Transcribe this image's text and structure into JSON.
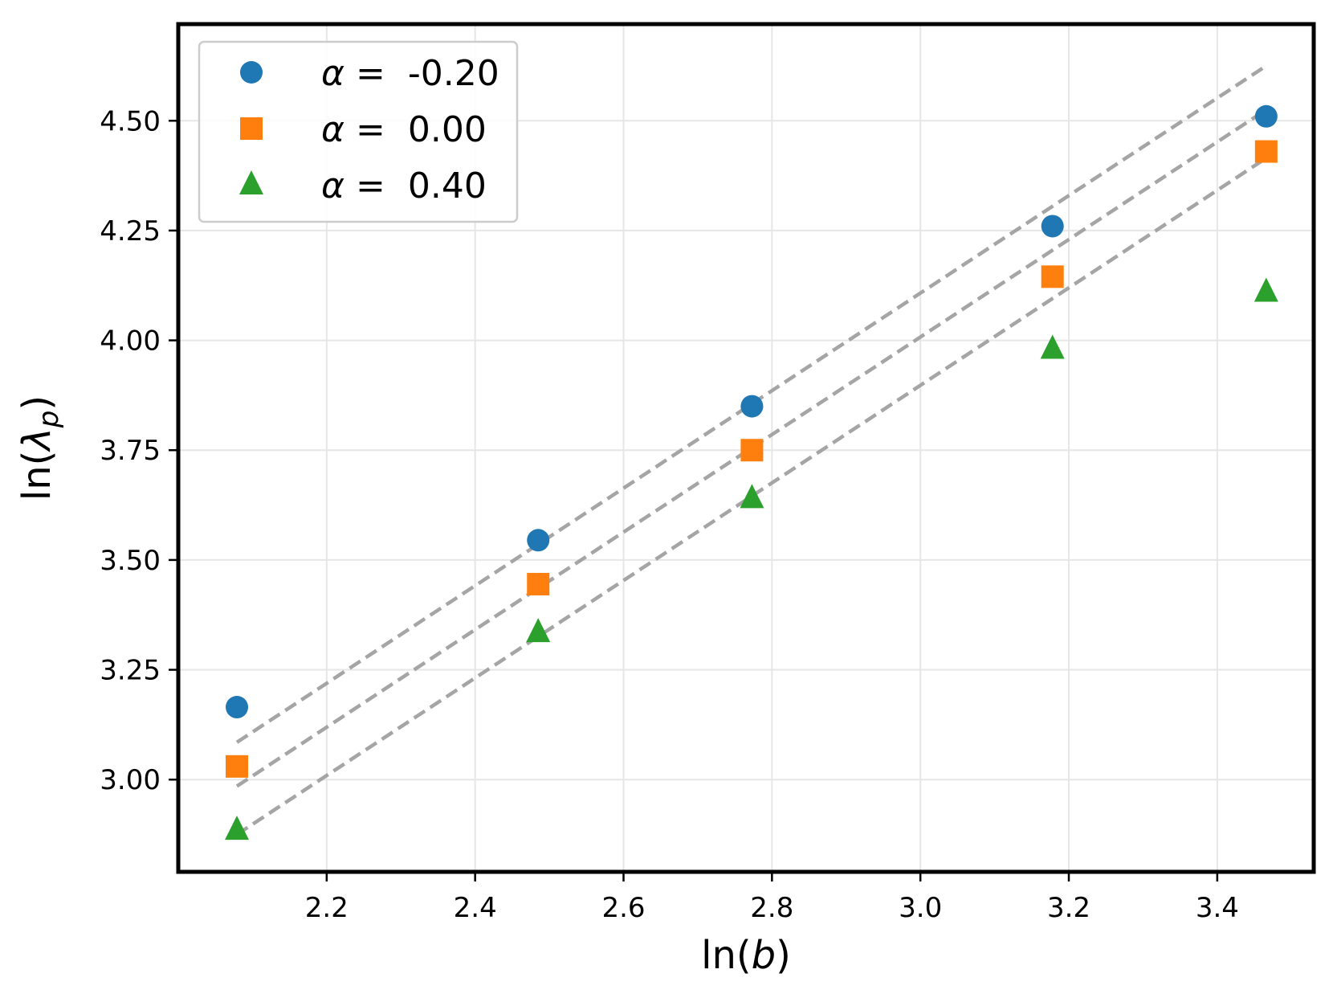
{
  "chart_data": {
    "type": "scatter",
    "title": "",
    "xlabel": "ln(b)",
    "ylabel": "ln(λ_p)",
    "xlabel_parts": {
      "prefix": "ln(",
      "var": "b",
      "suffix": ")"
    },
    "ylabel_parts": {
      "prefix": "ln(",
      "var": "λ",
      "sub": "p",
      "suffix": ")"
    },
    "xlim": [
      2.0,
      3.53
    ],
    "ylim": [
      2.79,
      4.72
    ],
    "xticks": [
      2.2,
      2.4,
      2.6,
      2.8,
      3.0,
      3.2,
      3.4
    ],
    "xtick_labels": [
      "2.2",
      "2.4",
      "2.6",
      "2.8",
      "3.0",
      "3.2",
      "3.4"
    ],
    "yticks": [
      3.0,
      3.25,
      3.5,
      3.75,
      4.0,
      4.25,
      4.5
    ],
    "ytick_labels": [
      "3.00",
      "3.25",
      "3.50",
      "3.75",
      "4.00",
      "4.25",
      "4.50"
    ],
    "grid": true,
    "legend_position": "top-left",
    "x": [
      2.079,
      2.485,
      2.773,
      3.178,
      3.466
    ],
    "series": [
      {
        "name": "α =  -0.20",
        "legend_symbol": "α =",
        "legend_value": "-0.20",
        "marker": "circle",
        "color": "#1f77b4",
        "values": [
          3.165,
          3.545,
          3.85,
          4.26,
          4.51
        ]
      },
      {
        "name": "α =  0.00",
        "legend_symbol": "α =",
        "legend_value": "0.00",
        "marker": "square",
        "color": "#ff7f0e",
        "values": [
          3.03,
          3.445,
          3.75,
          4.145,
          4.43
        ]
      },
      {
        "name": "α =  0.40",
        "legend_symbol": "α =",
        "legend_value": "0.40",
        "marker": "triangle",
        "color": "#2ca02c",
        "values": [
          2.885,
          3.335,
          3.64,
          3.98,
          4.11
        ]
      }
    ],
    "fit_lines": [
      {
        "x": [
          2.079,
          3.466
        ],
        "y": [
          3.085,
          4.625
        ],
        "color": "#a0a0a0",
        "style": "dashed"
      },
      {
        "x": [
          2.079,
          3.466
        ],
        "y": [
          2.985,
          4.525
        ],
        "color": "#a0a0a0",
        "style": "dashed"
      },
      {
        "x": [
          2.079,
          3.466
        ],
        "y": [
          2.875,
          4.415
        ],
        "color": "#a0a0a0",
        "style": "dashed"
      }
    ]
  }
}
